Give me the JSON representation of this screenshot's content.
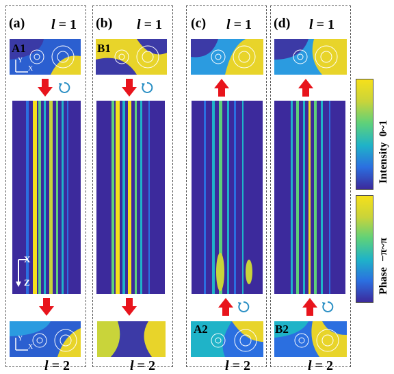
{
  "panels": [
    {
      "label": "(a)",
      "top_l": "1",
      "bottom_l": "2",
      "tag_top": "A1",
      "tag_bottom": ""
    },
    {
      "label": "(b)",
      "top_l": "1",
      "bottom_l": "2",
      "tag_top": "B1",
      "tag_bottom": ""
    },
    {
      "label": "(c)",
      "top_l": "1",
      "bottom_l": "2",
      "tag_top": "",
      "tag_bottom": "A2"
    },
    {
      "label": "(d)",
      "top_l": "1",
      "bottom_l": "2",
      "tag_top": "",
      "tag_bottom": "B2"
    }
  ],
  "l_symbol": "l",
  "eq": " = ",
  "axes": {
    "x": "X",
    "y": "Y",
    "z": "Z"
  },
  "colorbars": {
    "intensity": {
      "name": "Intensity",
      "range": "0~1"
    },
    "phase": {
      "name": "Phase",
      "range": "−π~π"
    }
  },
  "colors": {
    "arrow": "#e8141c",
    "circ_arrow": "#2a8fc4",
    "field_dark": "#3c2a9c",
    "field_bright": "#f6e01a"
  }
}
